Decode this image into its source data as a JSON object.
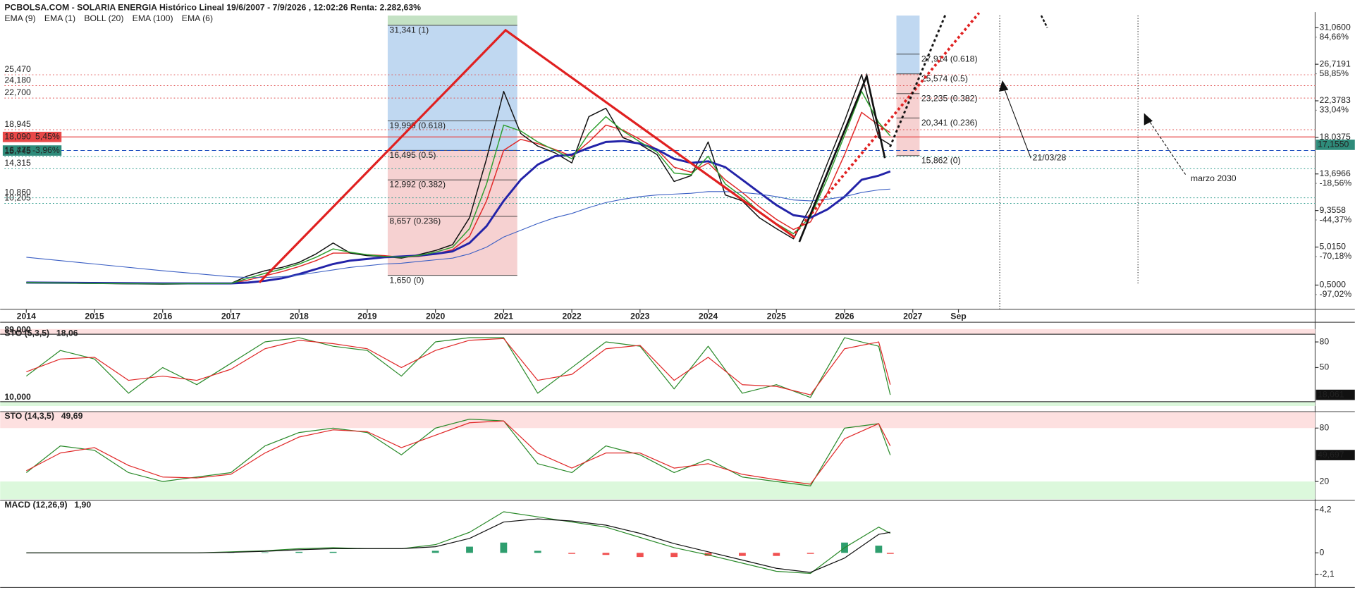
{
  "chart_data": [
    {
      "type": "line",
      "title": "PCBOLSA.COM - SOLARIA ENERGIA Histórico Lineal 19/6/2007 - 7/9/2026 , 12:02:26 Renta: 2.282,63%",
      "x": [
        2014,
        2015,
        2016,
        2017,
        2017.25,
        2017.5,
        2017.75,
        2018,
        2018.25,
        2018.5,
        2018.75,
        2019,
        2019.25,
        2019.5,
        2019.75,
        2020,
        2020.25,
        2020.5,
        2020.75,
        2021,
        2021.25,
        2021.5,
        2021.75,
        2022,
        2022.25,
        2022.5,
        2022.75,
        2023,
        2023.25,
        2023.5,
        2023.75,
        2024,
        2024.25,
        2024.5,
        2024.75,
        2025,
        2025.25,
        2025.5,
        2025.75,
        2026,
        2026.25,
        2026.5,
        2026.67
      ],
      "xlim": [
        2013.68,
        2032.9
      ],
      "xticks": [
        2014,
        2015,
        2016,
        2017,
        2018,
        2019,
        2020,
        2021,
        2022,
        2023,
        2024,
        2025,
        2026,
        2027,
        {
          "value": 2027.67,
          "label": "Sep"
        }
      ],
      "ylim": [
        -2.37,
        32.5
      ],
      "yticks": [
        {
          "value": 31.06,
          "label": "31,0600"
        },
        {
          "value": 26.7191,
          "label": "26,7191"
        },
        {
          "value": 22.3783,
          "label": "22,3783"
        },
        {
          "value": 18.0375,
          "label": "18,0375"
        },
        {
          "value": 13.6966,
          "label": "13,6966"
        },
        {
          "value": 9.3558,
          "label": "9,3558"
        },
        {
          "value": 5.015,
          "label": "5,0150"
        },
        {
          "value": 0.5,
          "label": "0,5000"
        }
      ],
      "y2lim": [
        -107.4,
        99.9
      ],
      "y2ticks": [
        {
          "value": 84.66,
          "label": "84,66%"
        },
        {
          "value": 58.85,
          "label": "58,85%"
        },
        {
          "value": 33.04,
          "label": "33,04%"
        },
        {
          "value": -18.56,
          "label": "-18,56%"
        },
        {
          "value": -44.37,
          "label": "-44,37%"
        },
        {
          "value": -70.18,
          "label": "-70,18%"
        },
        {
          "value": -97.02,
          "label": "-97,02%"
        }
      ],
      "series": [
        {
          "name": "EMA (9)",
          "color": "#e02828",
          "width": 1.2,
          "values": [
            0.8,
            0.7,
            0.65,
            0.7,
            1.1,
            1.6,
            2.1,
            2.7,
            3.4,
            4.3,
            4.3,
            4.1,
            4.0,
            3.8,
            3.9,
            4.2,
            4.7,
            6.3,
            10.5,
            16.5,
            17.8,
            17.3,
            16.6,
            15.8,
            17.5,
            19.5,
            18.9,
            17.8,
            16.6,
            14.5,
            13.9,
            15.0,
            13.0,
            11.5,
            9.8,
            8.3,
            7.1,
            8.0,
            11.5,
            16.0,
            21.0,
            19.5,
            18.6
          ]
        },
        {
          "name": "EMA (1)",
          "color": "#111111",
          "width": 1.2,
          "values": [
            0.8,
            0.7,
            0.6,
            0.7,
            1.6,
            2.2,
            2.6,
            3.2,
            4.2,
            5.5,
            4.3,
            4.0,
            3.9,
            3.7,
            4.1,
            4.6,
            5.3,
            8.5,
            15.5,
            23.5,
            18.5,
            17.0,
            16.2,
            15.0,
            20.5,
            21.5,
            18.0,
            17.2,
            16.0,
            12.8,
            13.5,
            17.5,
            11.2,
            10.5,
            8.5,
            7.2,
            6.0,
            9.8,
            15.0,
            20.0,
            25.5,
            18.0,
            17.155
          ]
        },
        {
          "name": "BOLL (20)",
          "color": "#2323a8",
          "width": 2.4,
          "values": [
            0.8,
            0.75,
            0.7,
            0.7,
            0.8,
            1.0,
            1.3,
            1.8,
            2.4,
            3.0,
            3.4,
            3.6,
            3.8,
            3.9,
            4.0,
            4.2,
            4.5,
            5.5,
            7.5,
            10.5,
            13.0,
            14.8,
            15.8,
            16.0,
            16.8,
            17.5,
            17.6,
            17.3,
            16.6,
            15.5,
            15.0,
            15.2,
            14.5,
            13.0,
            11.5,
            10.0,
            8.8,
            8.5,
            9.5,
            11.0,
            13.0,
            13.5,
            14.0
          ]
        },
        {
          "name": "EMA (100)",
          "color": "#3b5fc4",
          "width": 0.9,
          "values": [
            3.8,
            3.0,
            2.2,
            1.5,
            1.4,
            1.4,
            1.5,
            1.7,
            2.0,
            2.3,
            2.6,
            2.8,
            3.0,
            3.1,
            3.3,
            3.5,
            3.7,
            4.2,
            5.0,
            6.2,
            7.0,
            7.8,
            8.5,
            9.0,
            9.7,
            10.3,
            10.7,
            11.0,
            11.2,
            11.3,
            11.4,
            11.6,
            11.6,
            11.5,
            11.3,
            11.0,
            10.6,
            10.5,
            10.7,
            11.0,
            11.5,
            11.8,
            11.9
          ]
        },
        {
          "name": "EMA (6)",
          "color": "#2e9e2e",
          "width": 1.2,
          "values": [
            0.8,
            0.7,
            0.65,
            0.7,
            1.3,
            1.9,
            2.4,
            3.0,
            3.8,
            4.8,
            4.4,
            4.1,
            3.9,
            3.8,
            4.0,
            4.4,
            5.0,
            7.2,
            12.5,
            19.5,
            18.8,
            17.5,
            16.5,
            15.5,
            18.5,
            20.5,
            18.8,
            17.5,
            16.3,
            13.8,
            13.6,
            15.8,
            12.5,
            11.0,
            9.2,
            7.8,
            6.6,
            8.6,
            13.2,
            18.3,
            23.5,
            19.8,
            18.2
          ]
        }
      ],
      "last": {
        "value": 17.155,
        "label": "17,1550"
      },
      "last_color": "#2e8b7a",
      "levels": [
        {
          "value": 25.47,
          "label": "25,470",
          "color": "#e05050",
          "style": "dotted"
        },
        {
          "value": 24.18,
          "label": "24,180",
          "color": "#e05050",
          "style": "dotted"
        },
        {
          "value": 22.7,
          "label": "22,700",
          "color": "#e05050",
          "style": "dotted"
        },
        {
          "value": 18.945,
          "label": "18,945",
          "color": "#e05050",
          "style": "dotted"
        },
        {
          "value": 18.09,
          "label": "18,090",
          "change": "5,45%",
          "color": "#e84848",
          "style": "solid",
          "box_color": "#e84848"
        },
        {
          "value": 16.475,
          "label": "16,475",
          "change": "-3,96%",
          "color": "#2050c0",
          "style": "dashed",
          "box_color": "#2e8b7a"
        },
        {
          "value": 15.745,
          "label": "15,745",
          "color": "#2a9a8a",
          "style": "dotted"
        },
        {
          "value": 14.315,
          "label": "14,315",
          "color": "#2a9a8a",
          "style": "dotted"
        },
        {
          "value": 10.86,
          "label": "10,860",
          "color": "#2a9a8a",
          "style": "dotted"
        },
        {
          "value": 10.205,
          "label": "10,205",
          "color": "#2a9a8a",
          "style": "dotted"
        }
      ],
      "fib": [
        {
          "x": [
            2019.3,
            2021.2
          ],
          "label_side": "left",
          "levels": [
            {
              "value": 31.341,
              "label": "31,341 (1)",
              "color": "#3aa03a"
            },
            {
              "value": 19.999,
              "label": "19,999 (0.618)",
              "color": "#2f7fd0"
            },
            {
              "value": 16.495,
              "label": "16,495 (0.5)",
              "color": "#2f7fd0"
            },
            {
              "value": 12.992,
              "label": "12,992 (0.382)",
              "color": "#e06868"
            },
            {
              "value": 8.657,
              "label": "8,657 (0.236)",
              "color": "#e06868"
            },
            {
              "value": 1.65,
              "label": "1,650 (0)",
              "color": "#e06868"
            }
          ]
        },
        {
          "x": [
            2026.76,
            2027.1
          ],
          "label_side": "right",
          "levels": [
            {
              "value": 27.914,
              "label": "27,914 (0.618)",
              "color": "#2f7fd0"
            },
            {
              "value": 25.574,
              "label": "25,574 (0.5)",
              "color": "#2f7fd0"
            },
            {
              "value": 23.235,
              "label": "23,235 (0.382)",
              "color": "#e06868"
            },
            {
              "value": 20.341,
              "label": "20,341 (0.236)",
              "color": "#e06868"
            },
            {
              "value": 15.862,
              "label": "15,862 (0)",
              "color": "#e06868"
            }
          ]
        }
      ],
      "annotations": [
        "21/03/28",
        "marzo 2030"
      ]
    },
    {
      "type": "line",
      "title": "STO (5,3,5)",
      "current_label": "18,06",
      "x": [
        2014,
        2014.5,
        2015,
        2015.5,
        2016,
        2016.5,
        2017,
        2017.5,
        2018,
        2018.5,
        2019,
        2019.5,
        2020,
        2020.5,
        2021,
        2021.5,
        2022,
        2022.5,
        2023,
        2023.5,
        2024,
        2024.5,
        2025,
        2025.5,
        2026,
        2026.5,
        2026.67
      ],
      "xlim": [
        2013.68,
        2032.9
      ],
      "ylim": [
        5,
        95
      ],
      "yticks": [
        80,
        50
      ],
      "hlines": [
        {
          "value": 89,
          "label": "89,000"
        },
        {
          "value": 10,
          "label": "10,000"
        }
      ],
      "zones": [
        {
          "above": 89,
          "color": "#fde0e0"
        },
        {
          "below": 10,
          "color": "#dcf8dc"
        }
      ],
      "series": [
        {
          "color": "#2a8a2a",
          "width": 1,
          "values": [
            40,
            70,
            60,
            20,
            50,
            30,
            55,
            80,
            85,
            75,
            70,
            40,
            80,
            85,
            85,
            20,
            50,
            80,
            75,
            25,
            75,
            20,
            30,
            15,
            85,
            75,
            18.06
          ]
        },
        {
          "color": "#e02828",
          "width": 1,
          "values": [
            45,
            60,
            62,
            35,
            40,
            35,
            48,
            72,
            82,
            78,
            72,
            50,
            70,
            82,
            84,
            35,
            42,
            72,
            76,
            35,
            62,
            30,
            28,
            18,
            72,
            80,
            30
          ]
        }
      ],
      "last": {
        "value": 18.061,
        "label": "18,061"
      },
      "last_color": "#111111"
    },
    {
      "type": "line",
      "title": "STO (14,3,5)",
      "current_label": "49,69",
      "x": [
        2014,
        2014.5,
        2015,
        2015.5,
        2016,
        2016.5,
        2017,
        2017.5,
        2018,
        2018.5,
        2019,
        2019.5,
        2020,
        2020.5,
        2021,
        2021.5,
        2022,
        2022.5,
        2023,
        2023.5,
        2024,
        2024.5,
        2025,
        2025.5,
        2026,
        2026.5,
        2026.67
      ],
      "xlim": [
        2013.68,
        2032.9
      ],
      "ylim": [
        0,
        98
      ],
      "yticks": [
        80,
        20
      ],
      "zones": [
        {
          "above": 80,
          "color": "#fde0e0"
        },
        {
          "below": 20,
          "color": "#dcf8dc"
        }
      ],
      "series": [
        {
          "color": "#2a8a2a",
          "width": 1,
          "values": [
            30,
            60,
            55,
            30,
            20,
            25,
            30,
            60,
            75,
            80,
            75,
            50,
            80,
            90,
            88,
            40,
            30,
            60,
            50,
            30,
            45,
            25,
            20,
            15,
            80,
            85,
            49.69
          ]
        },
        {
          "color": "#e02828",
          "width": 1,
          "values": [
            32,
            52,
            58,
            38,
            25,
            24,
            28,
            52,
            70,
            78,
            76,
            58,
            72,
            86,
            88,
            52,
            35,
            52,
            52,
            35,
            40,
            28,
            22,
            17,
            68,
            85,
            60
          ]
        }
      ],
      "last": {
        "value": 49.697,
        "label": "49,697"
      },
      "last_color": "#111111"
    },
    {
      "type": "line",
      "title": "MACD (12,26,9)",
      "current_label": "1,90",
      "x": [
        2014,
        2014.5,
        2015,
        2015.5,
        2016,
        2016.5,
        2017,
        2017.5,
        2018,
        2018.5,
        2019,
        2019.5,
        2020,
        2020.5,
        2021,
        2021.5,
        2022,
        2022.5,
        2023,
        2023.5,
        2024,
        2024.5,
        2025,
        2025.5,
        2026,
        2026.5,
        2026.67
      ],
      "xlim": [
        2013.68,
        2032.9
      ],
      "ylim": [
        -3.36,
        5.04
      ],
      "yticks": [
        {
          "value": 4.2,
          "label": "4,2"
        },
        0,
        {
          "value": -2.1,
          "label": "-2,1"
        }
      ],
      "series": [
        {
          "style": "bar",
          "color": "#2e9e6e",
          "negative_color": "#f05050",
          "values": [
            0,
            0,
            0,
            0,
            0,
            0,
            0.05,
            0.05,
            0.1,
            0.1,
            0,
            0,
            0.2,
            0.6,
            1.0,
            0.2,
            -0.1,
            -0.2,
            -0.4,
            -0.4,
            -0.3,
            -0.3,
            -0.3,
            -0.1,
            1.0,
            0.7,
            -0.1
          ]
        },
        {
          "color": "#2a8a2a",
          "width": 1,
          "values": [
            0,
            0,
            0,
            0,
            0,
            0,
            0.1,
            0.2,
            0.4,
            0.5,
            0.4,
            0.4,
            0.8,
            2.0,
            4.0,
            3.5,
            3.0,
            2.5,
            1.5,
            0.5,
            -0.2,
            -1.0,
            -1.8,
            -2.0,
            0.5,
            2.5,
            1.9
          ]
        },
        {
          "color": "#111111",
          "width": 1,
          "values": [
            0,
            0,
            0,
            0,
            0,
            0,
            0.05,
            0.15,
            0.3,
            0.4,
            0.4,
            0.4,
            0.6,
            1.4,
            3.0,
            3.3,
            3.1,
            2.7,
            1.9,
            0.9,
            0.1,
            -0.7,
            -1.5,
            -1.9,
            -0.5,
            1.8,
            2.0
          ]
        }
      ]
    }
  ]
}
